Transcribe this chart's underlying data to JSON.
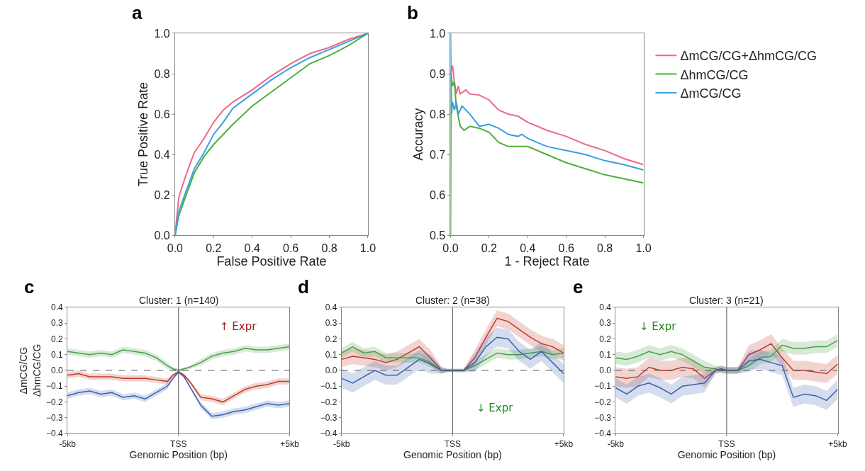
{
  "chart_data": [
    {
      "type": "line",
      "annotations": [
        "a"
      ],
      "xlabel": "False Positive Rate",
      "ylabel": "True Positive Rate",
      "xlim": [
        0,
        1
      ],
      "ylim": [
        0,
        1
      ],
      "xticks": [
        {
          "value": 0,
          "label": "0.0"
        },
        {
          "value": 0.2,
          "label": "0.2"
        },
        {
          "value": 0.4,
          "label": "0.4"
        },
        {
          "value": 0.6,
          "label": "0.6"
        },
        {
          "value": 0.8,
          "label": "0.8"
        },
        {
          "value": 1,
          "label": "1.0"
        }
      ],
      "yticks": [
        {
          "value": 0,
          "label": "0.0"
        },
        {
          "value": 0.2,
          "label": "0.2"
        },
        {
          "value": 0.4,
          "label": "0.4"
        },
        {
          "value": 0.6,
          "label": "0.6"
        },
        {
          "value": 0.8,
          "label": "0.8"
        },
        {
          "value": 1,
          "label": "1.0"
        }
      ],
      "grid": false,
      "marker": "none",
      "legend": false,
      "series": [
        {
          "color": "#ee6a86",
          "x": [
            0,
            0.01,
            0.02,
            0.05,
            0.08,
            0.1,
            0.15,
            0.2,
            0.25,
            0.3,
            0.4,
            0.5,
            0.6,
            0.7,
            0.8,
            0.9,
            1
          ],
          "values": [
            0,
            0.1,
            0.19,
            0.28,
            0.36,
            0.41,
            0.48,
            0.56,
            0.62,
            0.66,
            0.72,
            0.79,
            0.85,
            0.9,
            0.93,
            0.97,
            1
          ]
        },
        {
          "color": "#4daf3c",
          "x": [
            0,
            0.02,
            0.05,
            0.1,
            0.15,
            0.2,
            0.25,
            0.3,
            0.4,
            0.5,
            0.6,
            0.7,
            0.8,
            0.9,
            1
          ],
          "values": [
            0,
            0.1,
            0.18,
            0.31,
            0.39,
            0.45,
            0.5,
            0.55,
            0.64,
            0.71,
            0.78,
            0.85,
            0.89,
            0.94,
            1
          ]
        },
        {
          "color": "#3aa0e0",
          "x": [
            0,
            0.02,
            0.05,
            0.1,
            0.15,
            0.2,
            0.25,
            0.3,
            0.4,
            0.5,
            0.6,
            0.7,
            0.8,
            0.9,
            1
          ],
          "values": [
            0,
            0.12,
            0.2,
            0.33,
            0.41,
            0.5,
            0.56,
            0.63,
            0.7,
            0.77,
            0.83,
            0.88,
            0.92,
            0.96,
            1
          ]
        }
      ]
    },
    {
      "type": "line",
      "annotations": [
        "b"
      ],
      "xlabel": "1 - Reject Rate",
      "ylabel": "Accuracy",
      "xlim": [
        0,
        1
      ],
      "ylim": [
        0.5,
        1
      ],
      "xticks": [
        {
          "value": 0,
          "label": "0.0"
        },
        {
          "value": 0.2,
          "label": "0.2"
        },
        {
          "value": 0.4,
          "label": "0.4"
        },
        {
          "value": 0.6,
          "label": "0.6"
        },
        {
          "value": 0.8,
          "label": "0.8"
        },
        {
          "value": 1,
          "label": "1.0"
        }
      ],
      "yticks": [
        {
          "value": 0.5,
          "label": "0.5"
        },
        {
          "value": 0.6,
          "label": "0.6"
        },
        {
          "value": 0.7,
          "label": "0.7"
        },
        {
          "value": 0.8,
          "label": "0.8"
        },
        {
          "value": 0.9,
          "label": "0.9"
        },
        {
          "value": 1,
          "label": "1.0"
        }
      ],
      "grid": false,
      "marker": "none",
      "legend": "top right",
      "series": [
        {
          "name": "ΔmCG/CG+ΔhmCG/CG",
          "color": "#ee6a86",
          "x": [
            0,
            0.01,
            0.02,
            0.03,
            0.04,
            0.05,
            0.08,
            0.1,
            0.15,
            0.2,
            0.25,
            0.3,
            0.35,
            0.4,
            0.5,
            0.6,
            0.7,
            0.8,
            0.9,
            1
          ],
          "values": [
            0.9,
            0.92,
            0.88,
            0.85,
            0.87,
            0.85,
            0.86,
            0.85,
            0.847,
            0.835,
            0.81,
            0.8,
            0.795,
            0.78,
            0.76,
            0.745,
            0.725,
            0.71,
            0.69,
            0.675
          ]
        },
        {
          "name": "ΔhmCG/CG",
          "color": "#4daf3c",
          "x": [
            0,
            0.003,
            0.01,
            0.02,
            0.03,
            0.05,
            0.07,
            0.1,
            0.15,
            0.2,
            0.25,
            0.3,
            0.4,
            0.5,
            0.6,
            0.7,
            0.8,
            0.9,
            1
          ],
          "values": [
            0.5,
            0.9,
            0.87,
            0.88,
            0.82,
            0.77,
            0.76,
            0.77,
            0.765,
            0.755,
            0.73,
            0.72,
            0.72,
            0.7,
            0.68,
            0.665,
            0.65,
            0.64,
            0.63
          ]
        },
        {
          "name": "ΔmCG/CG",
          "color": "#3aa0e0",
          "x": [
            0,
            0.005,
            0.01,
            0.02,
            0.03,
            0.04,
            0.06,
            0.08,
            0.1,
            0.15,
            0.2,
            0.25,
            0.3,
            0.35,
            0.37,
            0.4,
            0.5,
            0.6,
            0.7,
            0.8,
            0.9,
            1
          ],
          "values": [
            1,
            0.8,
            0.83,
            0.81,
            0.83,
            0.8,
            0.82,
            0.81,
            0.8,
            0.77,
            0.775,
            0.765,
            0.75,
            0.745,
            0.75,
            0.74,
            0.72,
            0.71,
            0.7,
            0.685,
            0.675,
            0.662
          ]
        }
      ]
    },
    {
      "type": "line",
      "annotations": [
        "c",
        "↑ Expr"
      ],
      "title": "Cluster: 1 (n=140)",
      "xlabel": "Genomic Position (bp)",
      "ylabel": "ΔmCG/CG\nΔhmCG/CG",
      "x": [
        -5,
        -4.5,
        -4,
        -3.5,
        -3,
        -2.5,
        -2,
        -1.5,
        -1,
        -0.5,
        -0.25,
        0,
        0.25,
        0.5,
        1,
        1.5,
        2,
        2.5,
        3,
        3.5,
        4,
        4.5,
        5
      ],
      "xlim": [
        -5,
        5
      ],
      "xticks": [
        {
          "value": -5,
          "label": "-5kb"
        },
        {
          "value": 0,
          "label": "TSS"
        },
        {
          "value": 5,
          "label": "+5kb"
        }
      ],
      "ylim": [
        -0.4,
        0.4
      ],
      "yticks": [
        {
          "value": -0.4,
          "label": "−0.4"
        },
        {
          "value": -0.3,
          "label": "−0.3"
        },
        {
          "value": -0.2,
          "label": "−0.2"
        },
        {
          "value": -0.1,
          "label": "−0.1"
        },
        {
          "value": 0,
          "label": "0.0"
        },
        {
          "value": 0.1,
          "label": "0.1"
        },
        {
          "value": 0.2,
          "label": "0.2"
        },
        {
          "value": 0.3,
          "label": "0.3"
        },
        {
          "value": 0.4,
          "label": "0.4"
        }
      ],
      "grid": false,
      "marker": "none",
      "legend": false,
      "ref_lines": [
        {
          "axis": "x",
          "value": 0,
          "color": "#555555",
          "line_style": "solid"
        },
        {
          "axis": "y",
          "value": 0,
          "color": "#555555",
          "line_style": "dashed"
        }
      ],
      "series": [
        {
          "color": "#4a9e4a",
          "values": [
            0.12,
            0.11,
            0.1,
            0.11,
            0.1,
            0.13,
            0.12,
            0.11,
            0.08,
            0.03,
            0.01,
            0.0,
            0.01,
            0.02,
            0.05,
            0.09,
            0.11,
            0.12,
            0.14,
            0.13,
            0.13,
            0.14,
            0.15
          ],
          "lower": [
            0.1,
            0.09,
            0.08,
            0.09,
            0.08,
            0.11,
            0.1,
            0.09,
            0.06,
            0.01,
            0.0,
            -0.01,
            0.0,
            0.01,
            0.03,
            0.07,
            0.09,
            0.1,
            0.12,
            0.11,
            0.11,
            0.12,
            0.13
          ],
          "upper": [
            0.14,
            0.13,
            0.12,
            0.13,
            0.12,
            0.15,
            0.14,
            0.13,
            0.1,
            0.05,
            0.02,
            0.01,
            0.02,
            0.03,
            0.07,
            0.11,
            0.13,
            0.14,
            0.16,
            0.15,
            0.15,
            0.16,
            0.17
          ]
        },
        {
          "color": "#c0392b",
          "values": [
            -0.03,
            -0.02,
            -0.04,
            -0.04,
            -0.04,
            -0.05,
            -0.05,
            -0.05,
            -0.06,
            -0.07,
            -0.03,
            -0.01,
            -0.03,
            -0.07,
            -0.17,
            -0.18,
            -0.2,
            -0.16,
            -0.12,
            -0.1,
            -0.09,
            -0.07,
            -0.07
          ],
          "lower": [
            -0.05,
            -0.04,
            -0.06,
            -0.06,
            -0.06,
            -0.07,
            -0.07,
            -0.07,
            -0.08,
            -0.09,
            -0.04,
            -0.02,
            -0.04,
            -0.08,
            -0.19,
            -0.2,
            -0.22,
            -0.18,
            -0.14,
            -0.12,
            -0.11,
            -0.09,
            -0.09
          ],
          "upper": [
            -0.01,
            0.0,
            -0.02,
            -0.02,
            -0.02,
            -0.03,
            -0.03,
            -0.03,
            -0.04,
            -0.05,
            -0.02,
            0.0,
            -0.02,
            -0.06,
            -0.15,
            -0.16,
            -0.18,
            -0.14,
            -0.1,
            -0.08,
            -0.07,
            -0.05,
            -0.05
          ]
        },
        {
          "color": "#3b5fb0",
          "values": [
            -0.16,
            -0.14,
            -0.13,
            -0.15,
            -0.14,
            -0.17,
            -0.16,
            -0.18,
            -0.14,
            -0.1,
            -0.05,
            -0.01,
            -0.04,
            -0.1,
            -0.22,
            -0.29,
            -0.28,
            -0.26,
            -0.25,
            -0.23,
            -0.21,
            -0.22,
            -0.21
          ],
          "lower": [
            -0.18,
            -0.16,
            -0.15,
            -0.17,
            -0.16,
            -0.19,
            -0.18,
            -0.2,
            -0.16,
            -0.12,
            -0.06,
            -0.02,
            -0.05,
            -0.11,
            -0.24,
            -0.31,
            -0.3,
            -0.28,
            -0.27,
            -0.25,
            -0.23,
            -0.24,
            -0.23
          ],
          "upper": [
            -0.14,
            -0.12,
            -0.11,
            -0.13,
            -0.12,
            -0.15,
            -0.14,
            -0.16,
            -0.12,
            -0.08,
            -0.04,
            0.0,
            -0.03,
            -0.09,
            -0.2,
            -0.27,
            -0.26,
            -0.24,
            -0.23,
            -0.21,
            -0.19,
            -0.2,
            -0.19
          ]
        }
      ]
    },
    {
      "type": "line",
      "annotations": [
        "d",
        "↓ Expr"
      ],
      "title": "Cluster: 2 (n=38)",
      "xlabel": "Genomic Position (bp)",
      "x": [
        -5,
        -4.5,
        -4,
        -3.5,
        -3,
        -2.5,
        -2,
        -1.5,
        -1,
        -0.5,
        -0.25,
        0,
        0.25,
        0.5,
        1,
        1.5,
        2,
        2.5,
        3,
        3.5,
        4,
        4.5,
        5
      ],
      "xlim": [
        -5,
        5
      ],
      "xticks": [
        {
          "value": -5,
          "label": "-5kb"
        },
        {
          "value": 0,
          "label": "TSS"
        },
        {
          "value": 5,
          "label": "+5kb"
        }
      ],
      "ylim": [
        -0.4,
        0.4
      ],
      "yticks": [
        {
          "value": -0.4,
          "label": "−0.4"
        },
        {
          "value": -0.3,
          "label": "−0.3"
        },
        {
          "value": -0.2,
          "label": "−0.2"
        },
        {
          "value": -0.1,
          "label": "−0.1"
        },
        {
          "value": 0,
          "label": "0.0"
        },
        {
          "value": 0.1,
          "label": "0.1"
        },
        {
          "value": 0.2,
          "label": "0.2"
        },
        {
          "value": 0.3,
          "label": "0.3"
        },
        {
          "value": 0.4,
          "label": "0.4"
        }
      ],
      "grid": false,
      "marker": "none",
      "legend": false,
      "ref_lines": [
        {
          "axis": "x",
          "value": 0,
          "color": "#555555",
          "line_style": "solid"
        },
        {
          "axis": "y",
          "value": 0,
          "color": "#555555",
          "line_style": "dashed"
        }
      ],
      "series": [
        {
          "color": "#c0392b",
          "values": [
            0.07,
            0.09,
            0.08,
            0.07,
            0.05,
            0.07,
            0.11,
            0.15,
            0.08,
            0.0,
            0.0,
            0.0,
            0.0,
            0.0,
            0.08,
            0.21,
            0.33,
            0.31,
            0.26,
            0.21,
            0.17,
            0.15,
            0.11
          ],
          "lower": [
            0.02,
            0.04,
            0.03,
            0.02,
            0.0,
            0.02,
            0.06,
            0.1,
            0.03,
            -0.02,
            -0.01,
            -0.01,
            -0.01,
            -0.01,
            0.03,
            0.16,
            0.28,
            0.26,
            0.21,
            0.16,
            0.12,
            0.1,
            0.06
          ],
          "upper": [
            0.12,
            0.14,
            0.13,
            0.12,
            0.1,
            0.12,
            0.16,
            0.2,
            0.13,
            0.02,
            0.01,
            0.01,
            0.01,
            0.01,
            0.13,
            0.26,
            0.38,
            0.36,
            0.31,
            0.26,
            0.22,
            0.2,
            0.16
          ]
        },
        {
          "color": "#4a9e4a",
          "values": [
            0.11,
            0.15,
            0.11,
            0.12,
            0.08,
            0.08,
            0.08,
            0.08,
            0.05,
            0.0,
            0.0,
            0.0,
            0.0,
            0.0,
            0.03,
            0.07,
            0.11,
            0.1,
            0.1,
            0.11,
            0.12,
            0.1,
            0.11
          ],
          "lower": [
            0.08,
            0.12,
            0.08,
            0.09,
            0.05,
            0.05,
            0.05,
            0.05,
            0.02,
            -0.02,
            -0.01,
            -0.01,
            -0.01,
            -0.01,
            0.0,
            0.04,
            0.08,
            0.07,
            0.07,
            0.08,
            0.09,
            0.07,
            0.08
          ],
          "upper": [
            0.14,
            0.18,
            0.14,
            0.15,
            0.11,
            0.11,
            0.11,
            0.11,
            0.08,
            0.02,
            0.01,
            0.01,
            0.01,
            0.01,
            0.06,
            0.1,
            0.14,
            0.13,
            0.13,
            0.14,
            0.15,
            0.13,
            0.14
          ]
        },
        {
          "color": "#3b5fb0",
          "values": [
            -0.05,
            -0.08,
            -0.04,
            0.0,
            -0.03,
            -0.03,
            0.02,
            0.07,
            0.04,
            0.0,
            0.0,
            0.0,
            0.0,
            0.0,
            0.05,
            0.15,
            0.21,
            0.2,
            0.12,
            0.07,
            0.12,
            0.05,
            -0.02
          ],
          "lower": [
            -0.11,
            -0.14,
            -0.1,
            -0.06,
            -0.09,
            -0.09,
            -0.04,
            0.01,
            -0.02,
            -0.02,
            -0.01,
            -0.01,
            -0.01,
            -0.01,
            -0.01,
            0.09,
            0.15,
            0.14,
            0.06,
            0.01,
            0.06,
            -0.01,
            -0.08
          ],
          "upper": [
            0.01,
            -0.02,
            0.02,
            0.06,
            0.03,
            0.03,
            0.08,
            0.13,
            0.1,
            0.02,
            0.01,
            0.01,
            0.01,
            0.01,
            0.11,
            0.21,
            0.27,
            0.26,
            0.18,
            0.13,
            0.18,
            0.11,
            0.04
          ]
        }
      ]
    },
    {
      "type": "line",
      "annotations": [
        "e",
        "↓ Expr"
      ],
      "title": "Cluster: 3 (n=21)",
      "xlabel": "Genomic Position (bp)",
      "x": [
        -5,
        -4.5,
        -4,
        -3.5,
        -3,
        -2.5,
        -2,
        -1.5,
        -1,
        -0.5,
        -0.25,
        0,
        0.25,
        0.5,
        1,
        1.5,
        2,
        2.5,
        3,
        3.5,
        4,
        4.5,
        5
      ],
      "xlim": [
        -5,
        5
      ],
      "xticks": [
        {
          "value": -5,
          "label": "-5kb"
        },
        {
          "value": 0,
          "label": "TSS"
        },
        {
          "value": 5,
          "label": "+5kb"
        }
      ],
      "ylim": [
        -0.4,
        0.4
      ],
      "yticks": [
        {
          "value": -0.4,
          "label": "−0.4"
        },
        {
          "value": -0.3,
          "label": "−0.3"
        },
        {
          "value": -0.2,
          "label": "−0.2"
        },
        {
          "value": -0.1,
          "label": "−0.1"
        },
        {
          "value": 0,
          "label": "0.0"
        },
        {
          "value": 0.1,
          "label": "0.1"
        },
        {
          "value": 0.2,
          "label": "0.2"
        },
        {
          "value": 0.3,
          "label": "0.3"
        },
        {
          "value": 0.4,
          "label": "0.4"
        }
      ],
      "grid": false,
      "marker": "none",
      "legend": false,
      "ref_lines": [
        {
          "axis": "x",
          "value": 0,
          "color": "#555555",
          "line_style": "solid"
        },
        {
          "axis": "y",
          "value": 0,
          "color": "#555555",
          "line_style": "dashed"
        }
      ],
      "series": [
        {
          "color": "#c0392b",
          "values": [
            -0.04,
            -0.05,
            -0.04,
            0.02,
            0.0,
            0.0,
            0.02,
            0.01,
            -0.05,
            0.0,
            0.01,
            0.0,
            0.0,
            0.0,
            0.1,
            0.13,
            0.17,
            0.08,
            0.0,
            0.0,
            -0.01,
            -0.02,
            0.04
          ],
          "lower": [
            -0.1,
            -0.11,
            -0.1,
            -0.04,
            -0.06,
            -0.06,
            -0.04,
            -0.05,
            -0.11,
            -0.02,
            -0.01,
            -0.02,
            -0.02,
            -0.02,
            0.04,
            0.07,
            0.11,
            0.02,
            -0.06,
            -0.06,
            -0.07,
            -0.08,
            -0.02
          ],
          "upper": [
            0.02,
            0.01,
            0.02,
            0.08,
            0.06,
            0.06,
            0.08,
            0.07,
            0.01,
            0.02,
            0.03,
            0.02,
            0.02,
            0.02,
            0.16,
            0.19,
            0.23,
            0.14,
            0.06,
            0.06,
            0.05,
            0.04,
            0.1
          ]
        },
        {
          "color": "#4a9e4a",
          "values": [
            0.08,
            0.07,
            0.09,
            0.12,
            0.1,
            0.12,
            0.1,
            0.06,
            0.02,
            0.01,
            0.0,
            0.0,
            0.0,
            0.0,
            0.03,
            0.08,
            0.09,
            0.16,
            0.14,
            0.14,
            0.15,
            0.15,
            0.19
          ],
          "lower": [
            0.04,
            0.03,
            0.05,
            0.08,
            0.06,
            0.08,
            0.06,
            0.02,
            -0.02,
            -0.01,
            -0.02,
            -0.02,
            -0.02,
            -0.02,
            -0.01,
            0.04,
            0.05,
            0.12,
            0.1,
            0.1,
            0.11,
            0.11,
            0.15
          ],
          "upper": [
            0.12,
            0.11,
            0.13,
            0.16,
            0.14,
            0.16,
            0.14,
            0.1,
            0.06,
            0.03,
            0.02,
            0.02,
            0.02,
            0.02,
            0.07,
            0.12,
            0.13,
            0.2,
            0.18,
            0.18,
            0.19,
            0.19,
            0.23
          ]
        },
        {
          "color": "#3b5fb0",
          "values": [
            -0.11,
            -0.15,
            -0.1,
            -0.08,
            -0.11,
            -0.15,
            -0.1,
            -0.09,
            -0.08,
            0.0,
            0.01,
            0.0,
            0.0,
            0.0,
            0.06,
            0.07,
            0.05,
            0.03,
            -0.17,
            -0.15,
            -0.16,
            -0.19,
            -0.12
          ],
          "lower": [
            -0.17,
            -0.21,
            -0.16,
            -0.14,
            -0.17,
            -0.21,
            -0.16,
            -0.15,
            -0.14,
            -0.02,
            -0.01,
            -0.02,
            -0.02,
            -0.02,
            0.0,
            0.01,
            -0.01,
            -0.03,
            -0.23,
            -0.21,
            -0.22,
            -0.25,
            -0.18
          ],
          "upper": [
            -0.05,
            -0.09,
            -0.04,
            -0.02,
            -0.05,
            -0.09,
            -0.04,
            -0.03,
            -0.02,
            0.02,
            0.03,
            0.02,
            0.02,
            0.02,
            0.12,
            0.13,
            0.11,
            0.09,
            -0.11,
            -0.09,
            -0.1,
            -0.13,
            -0.06
          ]
        }
      ]
    }
  ]
}
